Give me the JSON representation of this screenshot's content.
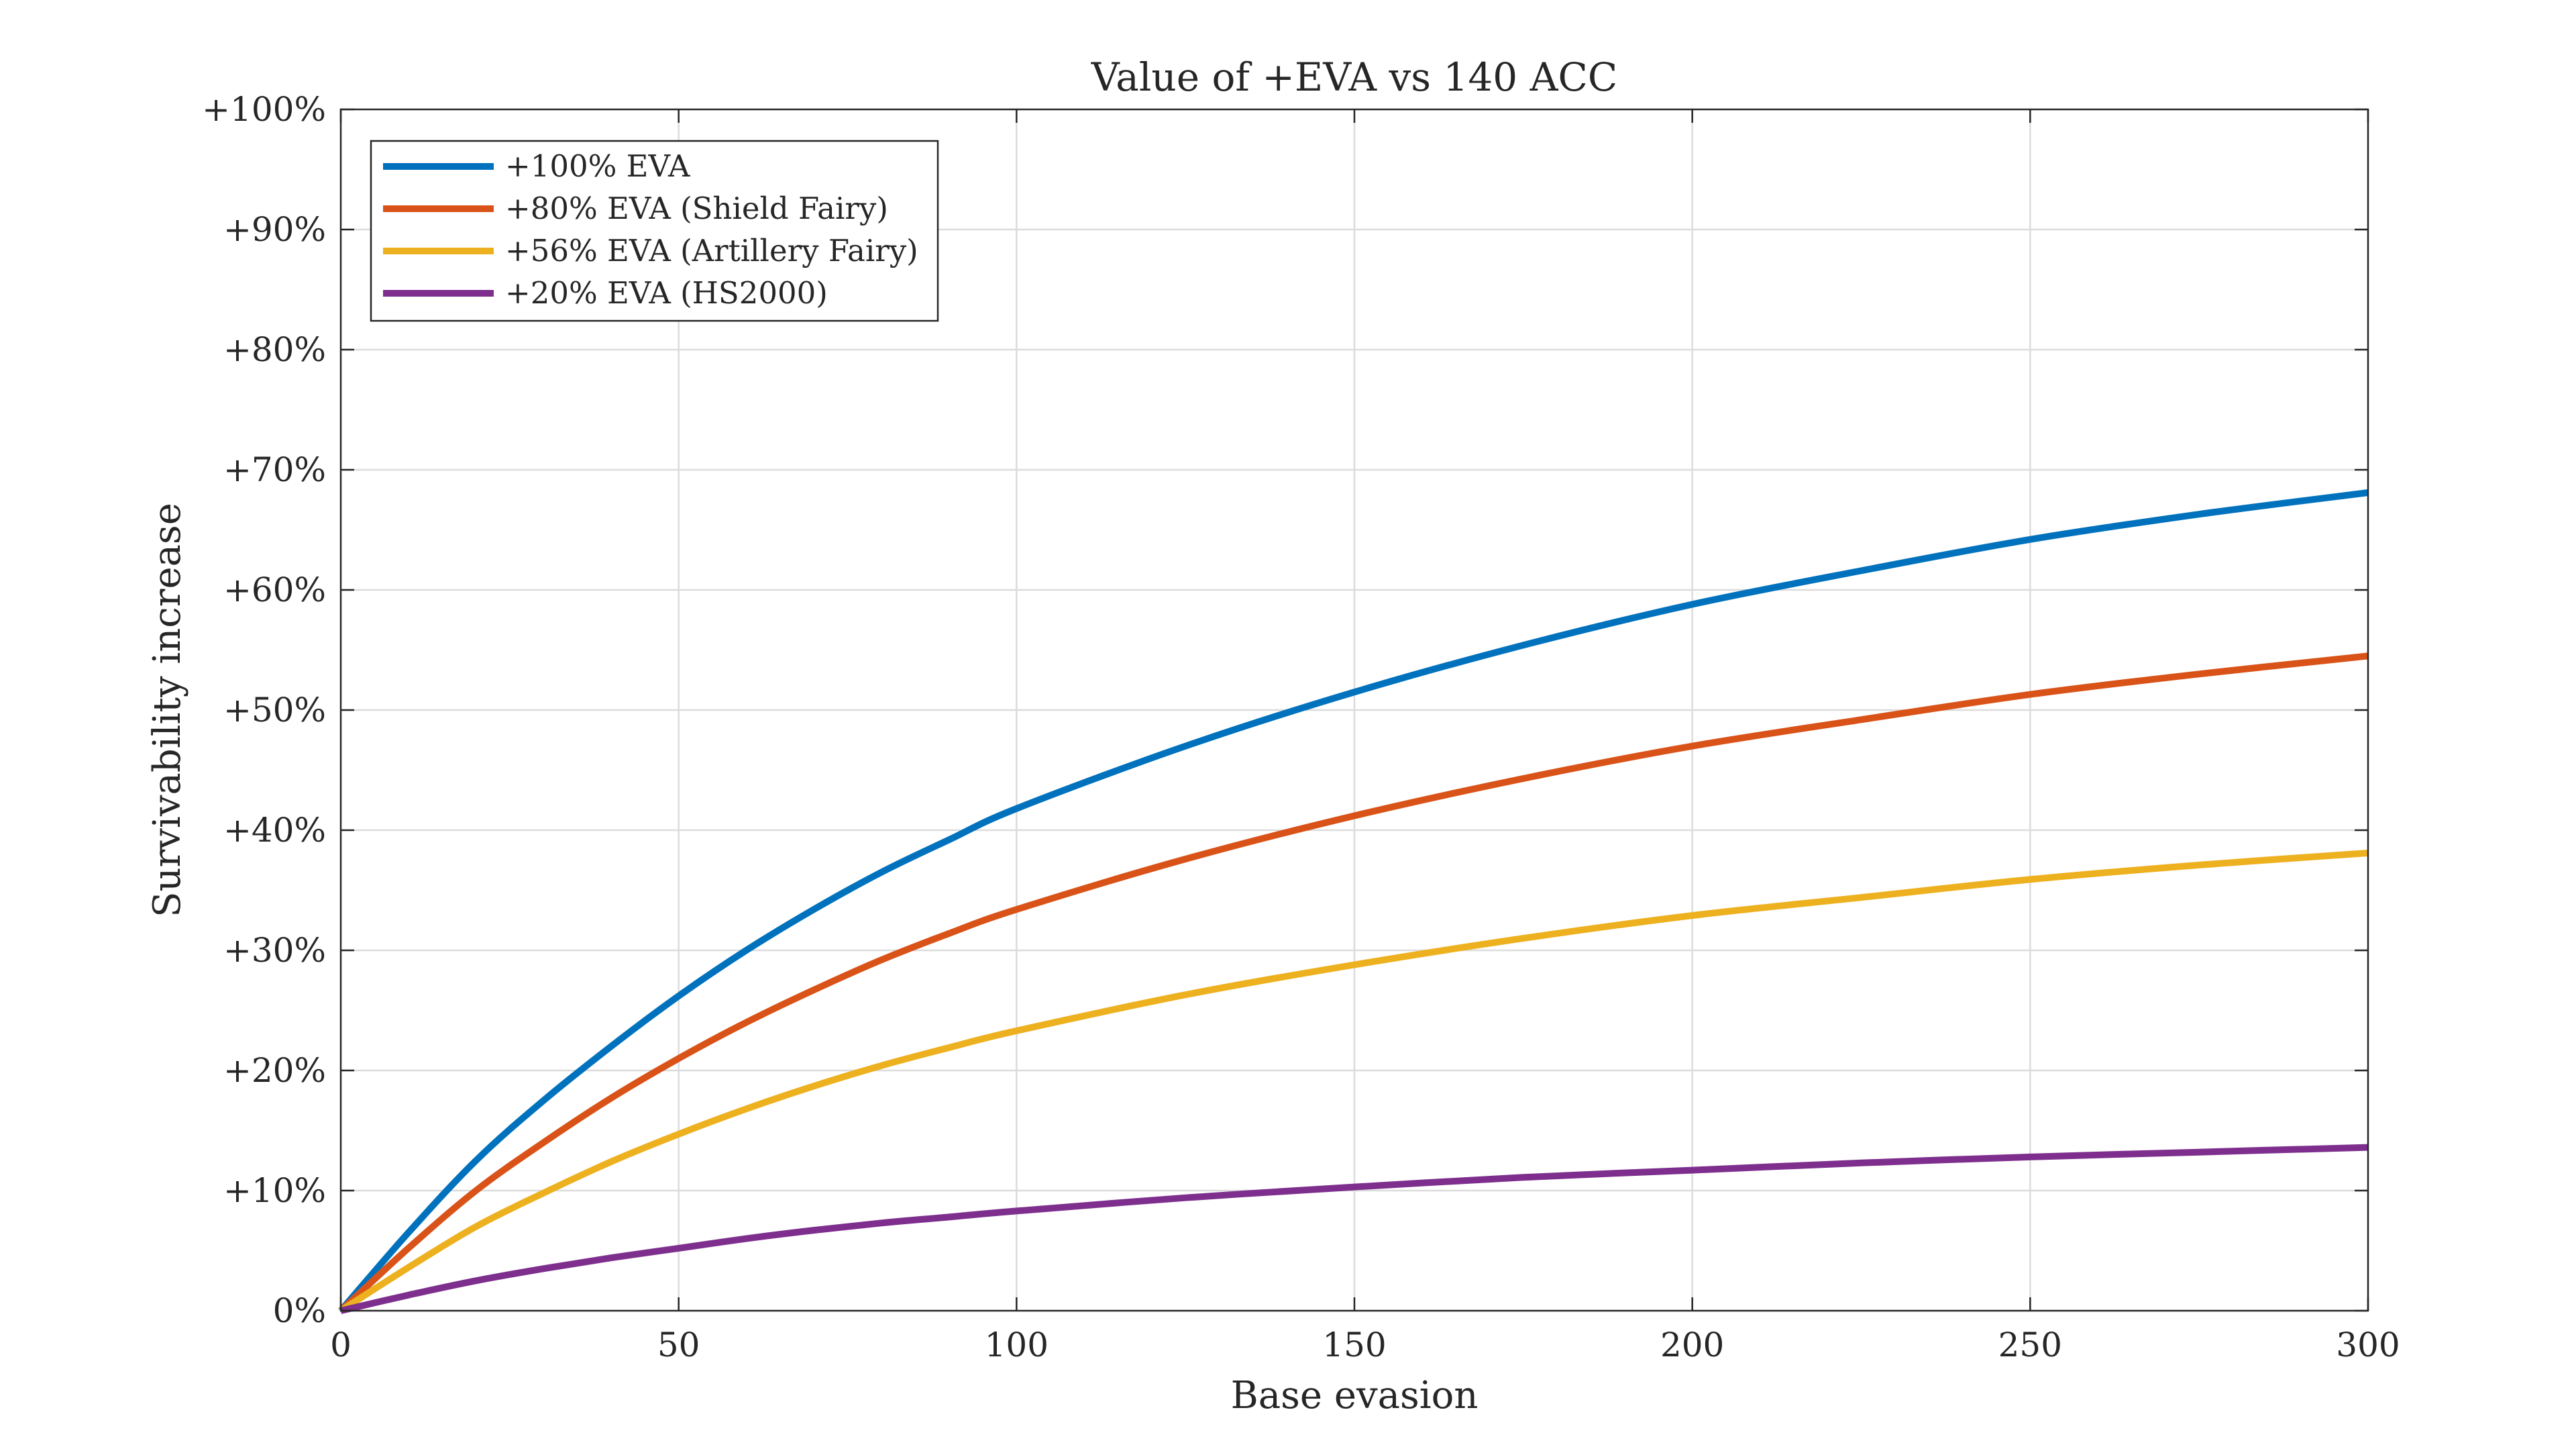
{
  "chart_data": {
    "type": "line",
    "title": "Value of +EVA vs 140 ACC",
    "xlabel": "Base evasion",
    "ylabel": "Survivability increase",
    "xlim": [
      0,
      300
    ],
    "ylim": [
      0,
      100
    ],
    "xticks": [
      0,
      50,
      100,
      150,
      200,
      250,
      300
    ],
    "xtick_labels": [
      "0",
      "50",
      "100",
      "150",
      "200",
      "250",
      "300"
    ],
    "yticks": [
      0,
      10,
      20,
      30,
      40,
      50,
      60,
      70,
      80,
      90,
      100
    ],
    "ytick_labels": [
      "0%",
      "+10%",
      "+20%",
      "+30%",
      "+40%",
      "+50%",
      "+60%",
      "+70%",
      "+80%",
      "+90%",
      "+100%"
    ],
    "grid": true,
    "legend_position": "top-left",
    "x": [
      0,
      10,
      20,
      30,
      40,
      50,
      60,
      70,
      80,
      90,
      100,
      125,
      150,
      175,
      200,
      225,
      250,
      275,
      300
    ],
    "series": [
      {
        "name": "+100% EVA",
        "color": "#0072BD",
        "values": [
          0,
          6.5,
          12.5,
          17.5,
          22.0,
          26.2,
          30.0,
          33.4,
          36.5,
          39.2,
          41.8,
          47.0,
          51.5,
          55.4,
          58.8,
          61.6,
          64.2,
          66.3,
          68.1
        ]
      },
      {
        "name": "+80% EVA (Shield Fairy)",
        "color": "#D95319",
        "values": [
          0,
          5.2,
          10.0,
          14.0,
          17.7,
          21.0,
          24.0,
          26.7,
          29.2,
          31.4,
          33.4,
          37.6,
          41.2,
          44.3,
          47.0,
          49.2,
          51.3,
          53.0,
          54.5
        ]
      },
      {
        "name": "+56% EVA (Artillery Fairy)",
        "color": "#EDB120",
        "values": [
          0,
          3.6,
          7.0,
          9.8,
          12.4,
          14.7,
          16.8,
          18.7,
          20.4,
          21.9,
          23.3,
          26.3,
          28.8,
          31.0,
          32.9,
          34.4,
          35.9,
          37.1,
          38.1
        ]
      },
      {
        "name": "+20% EVA (HS2000)",
        "color": "#7E2F8E",
        "values": [
          0,
          1.3,
          2.5,
          3.5,
          4.4,
          5.2,
          6.0,
          6.7,
          7.3,
          7.8,
          8.3,
          9.4,
          10.3,
          11.1,
          11.7,
          12.3,
          12.8,
          13.2,
          13.6
        ]
      }
    ]
  }
}
